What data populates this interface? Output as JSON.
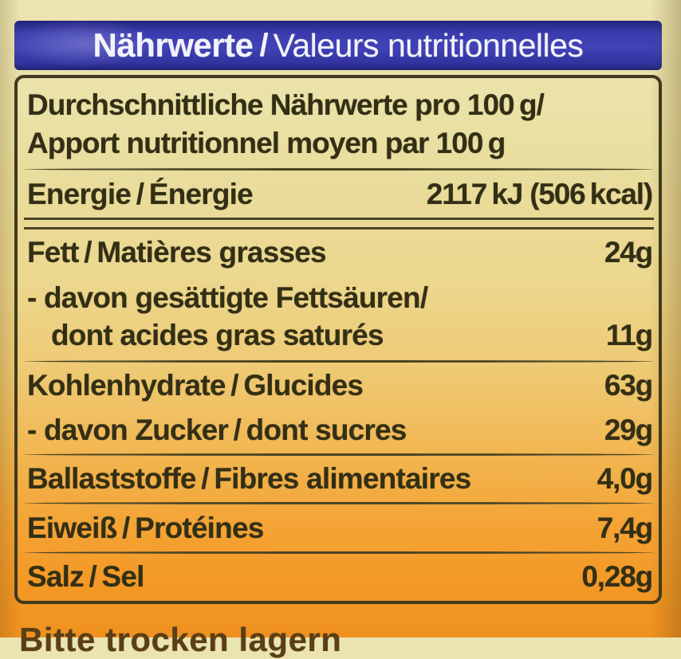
{
  "banner": {
    "title_de": "Nährwerte",
    "separator": "/",
    "title_fr": "Valeurs nutritionnelles"
  },
  "table": {
    "header": {
      "line1": "Durchschnittliche Nährwerte pro 100 g/",
      "line2": "Apport nutritionnel moyen par 100 g"
    },
    "rows": [
      {
        "label": "Energie / Énergie",
        "value": "2117 kJ (506 kcal)"
      },
      {
        "label": "Fett / Matières grasses",
        "value": "24g"
      },
      {
        "label_line1": "- davon gesättigte Fettsäuren/",
        "label_line2": "dont acides gras saturés",
        "value": "11g"
      },
      {
        "label": "Kohlenhydrate / Glucides",
        "value": "63g"
      },
      {
        "label": "- davon Zucker / dont sucres",
        "value": "29g"
      },
      {
        "label": "Ballaststoffe / Fibres alimentaires",
        "value": "4,0g"
      },
      {
        "label": "Eiweiß / Protéines",
        "value": "7,4g"
      },
      {
        "label": "Salz / Sel",
        "value": "0,28g"
      }
    ]
  },
  "footer": {
    "cutoff_text": "Bitte trocken lagern"
  },
  "colors": {
    "banner_blue": "#3a3cae",
    "label_background_top": "#ebe5b2",
    "label_background_bottom": "#f09120",
    "table_border": "#3e3a1e",
    "text_dark": "#332f15"
  }
}
